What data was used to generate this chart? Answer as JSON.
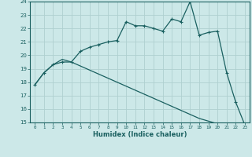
{
  "xlabel": "Humidex (Indice chaleur)",
  "background_color": "#cce8e8",
  "grid_color": "#afd0d0",
  "line_color": "#1a6060",
  "xlim": [
    -0.5,
    23.5
  ],
  "ylim": [
    15,
    24
  ],
  "yticks": [
    15,
    16,
    17,
    18,
    19,
    20,
    21,
    22,
    23,
    24
  ],
  "xticks": [
    0,
    1,
    2,
    3,
    4,
    5,
    6,
    7,
    8,
    9,
    10,
    11,
    12,
    13,
    14,
    15,
    16,
    17,
    18,
    19,
    20,
    21,
    22,
    23
  ],
  "curve1_x": [
    0,
    1,
    2,
    3,
    4,
    5,
    6,
    7,
    8,
    9,
    10,
    11,
    12,
    13,
    14,
    15,
    16,
    17,
    18,
    19,
    20,
    21,
    22,
    23
  ],
  "curve1_y": [
    17.8,
    18.7,
    19.3,
    19.5,
    19.5,
    20.3,
    20.6,
    20.8,
    21.0,
    21.1,
    22.5,
    22.2,
    22.2,
    22.0,
    21.8,
    22.7,
    22.5,
    24.0,
    21.5,
    21.7,
    21.8,
    18.7,
    16.5,
    14.8
  ],
  "curve2_x": [
    0,
    1,
    2,
    3,
    4,
    5,
    6,
    7,
    8,
    9,
    10,
    11,
    12,
    13,
    14,
    15,
    16,
    17,
    18,
    19,
    20,
    21,
    22,
    23
  ],
  "curve2_y": [
    17.8,
    18.7,
    19.3,
    19.7,
    19.5,
    19.2,
    18.9,
    18.6,
    18.3,
    18.0,
    17.7,
    17.4,
    17.1,
    16.8,
    16.5,
    16.2,
    15.9,
    15.6,
    15.3,
    15.1,
    14.9,
    14.7,
    14.5,
    14.3
  ]
}
